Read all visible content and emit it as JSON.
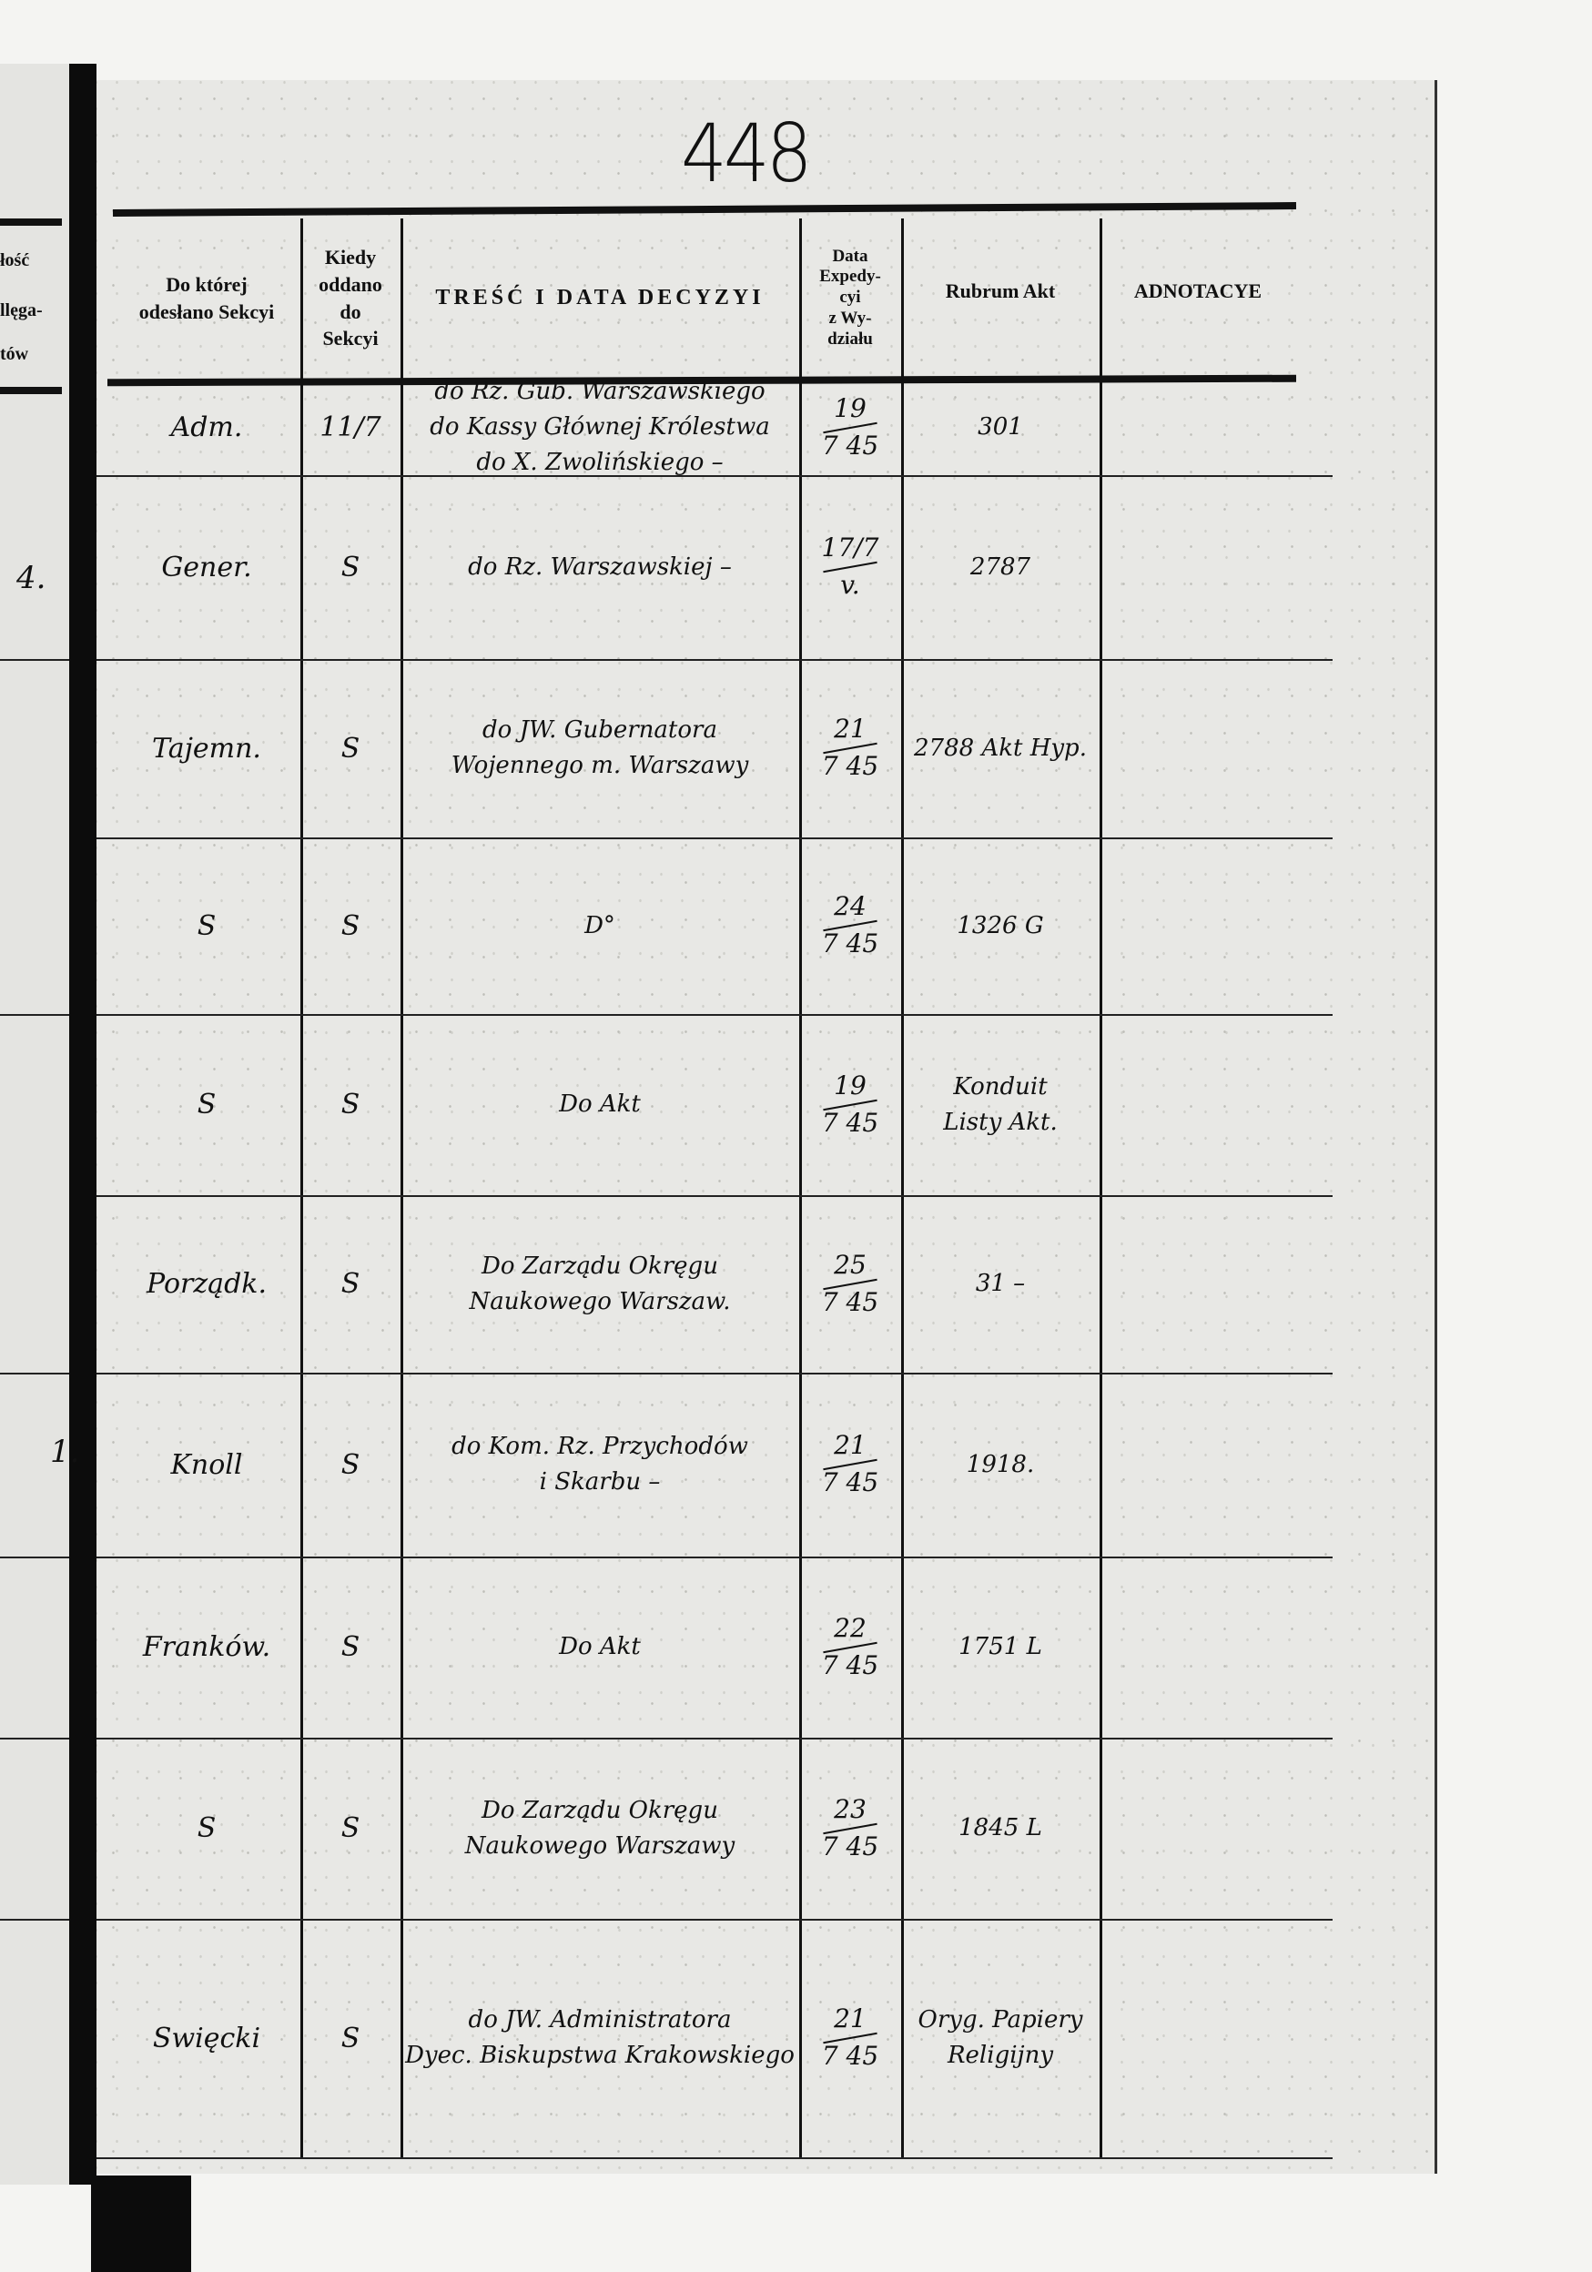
{
  "page_number": "448",
  "left_margin": {
    "header_fragments": [
      "łość",
      "llęga-",
      "tów"
    ],
    "row_numbers": [
      {
        "row": 2,
        "text": "4."
      },
      {
        "row": 7,
        "text": "1."
      }
    ]
  },
  "header": {
    "col_section": [
      "Do której",
      "odesłano Sekcyi"
    ],
    "col_when": [
      "Kiedy",
      "oddano",
      "do",
      "Sekcyi"
    ],
    "col_content": "TREŚĆ I DATA DECYZYI",
    "col_dispatch": [
      "Data",
      "Expedy-",
      "cyi",
      "z Wy-",
      "działu"
    ],
    "col_rubrum": "Rubrum Akt",
    "col_notes": "ADNOTACYE"
  },
  "rows": [
    {
      "section": "Adm.",
      "when": "11/7",
      "content": [
        "do Rz. Gub. Warszawskiego",
        "do Kassy Głównej Królestwa",
        "do X. Zwolińskiego –"
      ],
      "date_day": "19",
      "date_rest": "7 45",
      "rubrum": [
        "301"
      ]
    },
    {
      "section": "Gener.",
      "when": "S",
      "content": [
        "do Rz. Warszawskiej –"
      ],
      "date_day": "17/7",
      "date_rest": "v.",
      "rubrum": [
        "2787"
      ]
    },
    {
      "section": "Tajemn.",
      "when": "S",
      "content": [
        "do JW. Gubernatora",
        "Wojennego m. Warszawy"
      ],
      "date_day": "21",
      "date_rest": "7 45",
      "rubrum": [
        "2788 Akt Hyp."
      ]
    },
    {
      "section": "S",
      "when": "S",
      "content": [
        "D°"
      ],
      "date_day": "24",
      "date_rest": "7 45",
      "rubrum": [
        "1326 G"
      ]
    },
    {
      "section": "S",
      "when": "S",
      "content": [
        "Do Akt"
      ],
      "date_day": "19",
      "date_rest": "7 45",
      "rubrum": [
        "Konduit",
        "Listy Akt."
      ]
    },
    {
      "section": "Porządk.",
      "when": "S",
      "content": [
        "Do Zarządu Okręgu",
        "Naukowego Warszaw."
      ],
      "date_day": "25",
      "date_rest": "7 45",
      "rubrum": [
        "31 –"
      ]
    },
    {
      "section": "Knoll",
      "when": "S",
      "content": [
        "do Kom. Rz. Przychodów",
        "i Skarbu –"
      ],
      "date_day": "21",
      "date_rest": "7 45",
      "rubrum": [
        "1918."
      ]
    },
    {
      "section": "Franków.",
      "when": "S",
      "content": [
        "Do Akt"
      ],
      "date_day": "22",
      "date_rest": "7 45",
      "rubrum": [
        "1751 L"
      ]
    },
    {
      "section": "S",
      "when": "S",
      "content": [
        "Do Zarządu Okręgu",
        "Naukowego Warszawy"
      ],
      "date_day": "23",
      "date_rest": "7 45",
      "rubrum": [
        "1845 L"
      ]
    },
    {
      "section": "Swięcki",
      "when": "S",
      "content": [
        "do JW. Administratora",
        "Dyec. Biskupstwa Krakowskiego"
      ],
      "date_day": "21",
      "date_rest": "7 45",
      "rubrum": [
        "Oryg. Papiery",
        "Religijny"
      ]
    }
  ]
}
